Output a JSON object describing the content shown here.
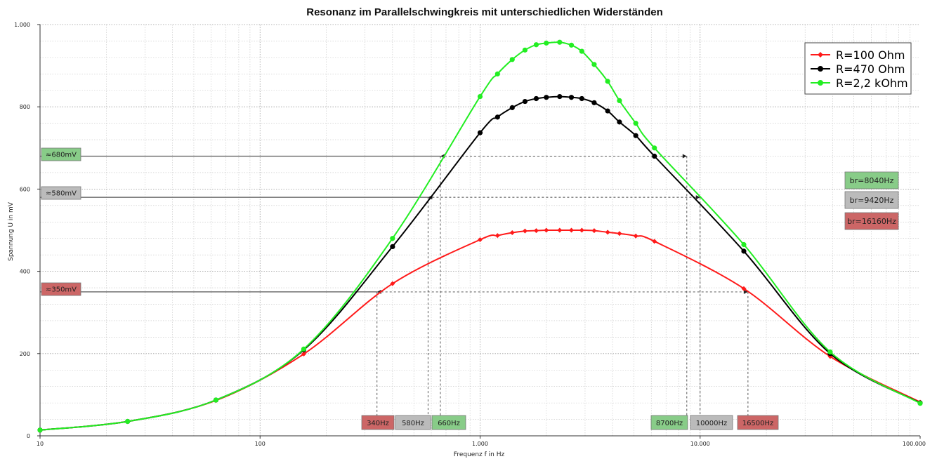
{
  "chart_data": {
    "type": "line",
    "title": "Resonanz im Parallelschwingkreis mit unterschiedlichen Widerständen",
    "xlabel": "Frequenz f in Hz",
    "ylabel": "Spannung U in mV",
    "x_scale": "log",
    "xlim": [
      10,
      100000
    ],
    "ylim": [
      0,
      1000
    ],
    "x_ticks": [
      {
        "value": 10,
        "label": "10"
      },
      {
        "value": 100,
        "label": "100"
      },
      {
        "value": 1000,
        "label": "1.000"
      },
      {
        "value": 10000,
        "label": "10.000"
      },
      {
        "value": 100000,
        "label": "100.000"
      }
    ],
    "y_ticks": [
      {
        "value": 0,
        "label": "0"
      },
      {
        "value": 200,
        "label": "200"
      },
      {
        "value": 400,
        "label": "400"
      },
      {
        "value": 600,
        "label": "600"
      },
      {
        "value": 800,
        "label": "800"
      },
      {
        "value": 1000,
        "label": "1.000"
      }
    ],
    "grid": true,
    "legend_position": "top-right",
    "series": [
      {
        "name": "R=100 Ohm",
        "color": "#ff1a1a",
        "x": [
          10,
          25,
          63,
          158,
          400,
          1000,
          1200,
          1400,
          1600,
          1800,
          2000,
          2300,
          2600,
          2900,
          3300,
          3800,
          4300,
          5100,
          6200,
          15800,
          39000,
          100000
        ],
        "y": [
          14,
          35,
          86,
          199,
          370,
          477,
          487,
          494,
          498,
          499,
          500,
          500,
          500,
          500,
          499,
          495,
          492,
          486,
          473,
          358,
          193,
          82
        ]
      },
      {
        "name": "R=470 Ohm",
        "color": "#000000",
        "x": [
          10,
          25,
          63,
          158,
          400,
          1000,
          1200,
          1400,
          1600,
          1800,
          2000,
          2300,
          2600,
          2900,
          3300,
          3800,
          4300,
          5100,
          6200,
          15800,
          39000,
          100000
        ],
        "y": [
          14,
          35,
          87,
          209,
          460,
          737,
          775,
          798,
          813,
          820,
          823,
          825,
          823,
          820,
          810,
          790,
          763,
          730,
          680,
          449,
          200,
          80
        ]
      },
      {
        "name": "R=2,2 kOhm",
        "color": "#22ee22",
        "x": [
          10,
          25,
          63,
          158,
          400,
          1000,
          1200,
          1400,
          1600,
          1800,
          2000,
          2300,
          2600,
          2900,
          3300,
          3800,
          4300,
          5100,
          6200,
          15800,
          39000,
          100000
        ],
        "y": [
          14,
          35,
          87,
          211,
          480,
          825,
          880,
          915,
          938,
          951,
          955,
          957,
          950,
          935,
          903,
          862,
          815,
          760,
          700,
          465,
          204,
          79
        ]
      }
    ],
    "annotations": {
      "levels": [
        {
          "label": "≈680mV",
          "value": 680,
          "color": "#88cc88",
          "f_low": 660,
          "f_high": 8700
        },
        {
          "label": "≈580mV",
          "value": 580,
          "color": "#bbbbbb",
          "f_low": 580,
          "f_high": 10000
        },
        {
          "label": "≈350mV",
          "value": 350,
          "color": "#cc6666",
          "f_low": 340,
          "f_high": 16500
        }
      ],
      "freq_labels": [
        {
          "label": "340Hz",
          "color": "#cc6666"
        },
        {
          "label": "580Hz",
          "color": "#bbbbbb"
        },
        {
          "label": "660Hz",
          "color": "#88cc88"
        },
        {
          "label": "8700Hz",
          "color": "#88cc88"
        },
        {
          "label": "10000Hz",
          "color": "#bbbbbb"
        },
        {
          "label": "16500Hz",
          "color": "#cc6666"
        }
      ],
      "bandwidths": [
        {
          "label": "br=8040Hz",
          "color": "#88cc88"
        },
        {
          "label": "br=9420Hz",
          "color": "#bbbbbb"
        },
        {
          "label": "br=16160Hz",
          "color": "#cc6666"
        }
      ]
    }
  }
}
